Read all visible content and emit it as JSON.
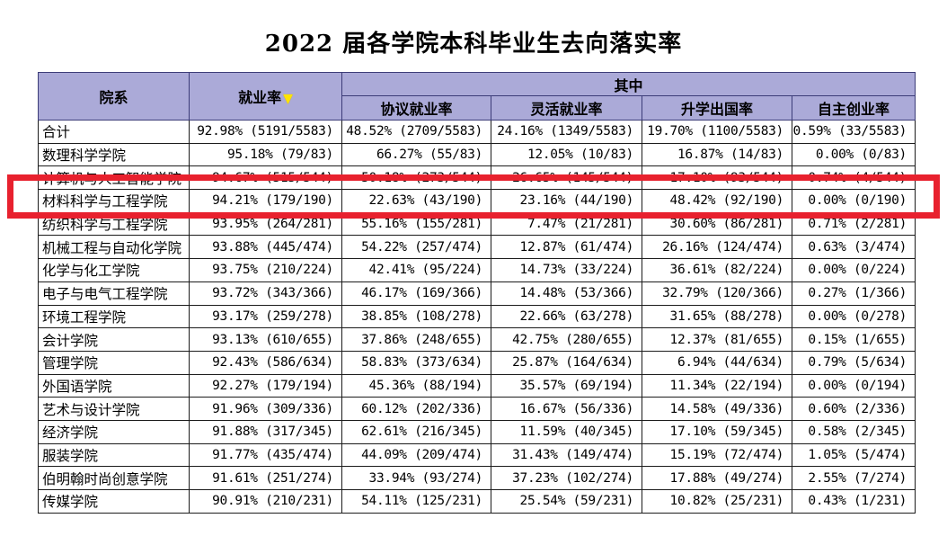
{
  "title": "2022 届各学院本科毕业生去向落实率",
  "colors": {
    "header_bg": "#abaad8",
    "header_border": "#3c3c78",
    "body_border": "#1c1c1c",
    "highlight_red": "#e8212e",
    "sort_triangle_yellow": "#ffe400"
  },
  "chart_data": {
    "type": "table",
    "title": "2022 届各学院本科毕业生去向落实率",
    "columns": [
      "院系",
      "就业率",
      "协议就业率",
      "灵活就业率",
      "升学出国率",
      "自主创业率"
    ],
    "header_group_label": "其中",
    "sort": {
      "column": "就业率",
      "direction": "desc",
      "icon": "▼"
    },
    "highlighted_row": "材料科学与工程学院",
    "highlighted_row_index": 3,
    "rows": [
      [
        "合计",
        "92.98% (5191/5583)",
        "48.52% (2709/5583)",
        "24.16% (1349/5583)",
        "19.70% (1100/5583)",
        "0.59% (33/5583)"
      ],
      [
        "数理科学学院",
        "95.18% (79/83)",
        "66.27% (55/83)",
        "12.05% (10/83)",
        "16.87% (14/83)",
        "0.00% (0/83)"
      ],
      [
        "计算机与人工智能学院",
        "94.67% (515/544)",
        "50.18% (273/544)",
        "26.65% (145/544)",
        "17.10% (93/544)",
        "0.74% (4/544)"
      ],
      [
        "材料科学与工程学院",
        "94.21% (179/190)",
        "22.63% (43/190)",
        "23.16% (44/190)",
        "48.42% (92/190)",
        "0.00% (0/190)"
      ],
      [
        "纺织科学与工程学院",
        "93.95% (264/281)",
        "55.16% (155/281)",
        "7.47% (21/281)",
        "30.60% (86/281)",
        "0.71% (2/281)"
      ],
      [
        "机械工程与自动化学院",
        "93.88% (445/474)",
        "54.22% (257/474)",
        "12.87% (61/474)",
        "26.16% (124/474)",
        "0.63% (3/474)"
      ],
      [
        "化学与化工学院",
        "93.75% (210/224)",
        "42.41% (95/224)",
        "14.73% (33/224)",
        "36.61% (82/224)",
        "0.00% (0/224)"
      ],
      [
        "电子与电气工程学院",
        "93.72% (343/366)",
        "46.17% (169/366)",
        "14.48% (53/366)",
        "32.79% (120/366)",
        "0.27% (1/366)"
      ],
      [
        "环境工程学院",
        "93.17% (259/278)",
        "38.85% (108/278)",
        "22.66% (63/278)",
        "31.65% (88/278)",
        "0.00% (0/278)"
      ],
      [
        "会计学院",
        "93.13% (610/655)",
        "37.86% (248/655)",
        "42.75% (280/655)",
        "12.37% (81/655)",
        "0.15% (1/655)"
      ],
      [
        "管理学院",
        "92.43% (586/634)",
        "58.83% (373/634)",
        "25.87% (164/634)",
        "6.94% (44/634)",
        "0.79% (5/634)"
      ],
      [
        "外国语学院",
        "92.27% (179/194)",
        "45.36% (88/194)",
        "35.57% (69/194)",
        "11.34% (22/194)",
        "0.00% (0/194)"
      ],
      [
        "艺术与设计学院",
        "91.96% (309/336)",
        "60.12% (202/336)",
        "16.67% (56/336)",
        "14.58% (49/336)",
        "0.60% (2/336)"
      ],
      [
        "经济学院",
        "91.88% (317/345)",
        "62.61% (216/345)",
        "11.59% (40/345)",
        "17.10% (59/345)",
        "0.58% (2/345)"
      ],
      [
        "服装学院",
        "91.77% (435/474)",
        "44.09% (209/474)",
        "31.43% (149/474)",
        "15.19% (72/474)",
        "1.05% (5/474)"
      ],
      [
        "伯明翰时尚创意学院",
        "91.61% (251/274)",
        "33.94% (93/274)",
        "37.23% (102/274)",
        "17.88% (49/274)",
        "2.55% (7/274)"
      ],
      [
        "传媒学院",
        "90.91% (210/231)",
        "54.11% (125/231)",
        "25.54% (59/231)",
        "10.82% (25/231)",
        "0.43% (1/231)"
      ]
    ]
  }
}
